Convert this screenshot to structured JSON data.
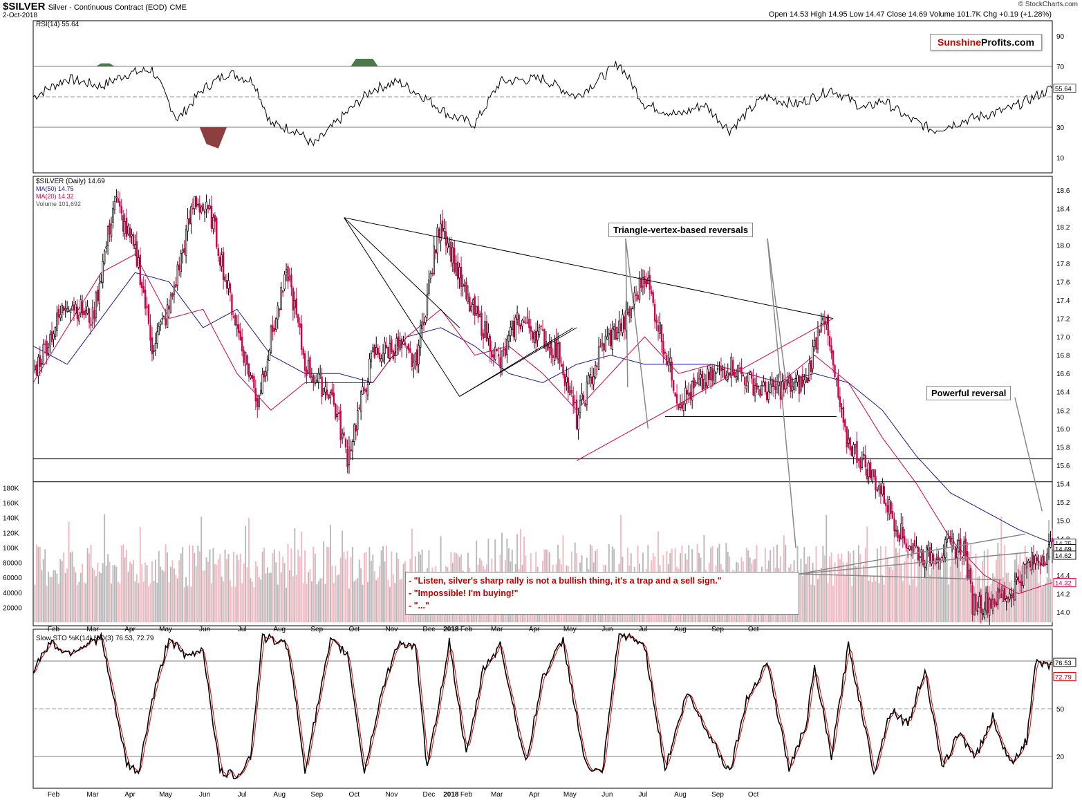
{
  "header": {
    "symbol": "$SILVER",
    "description": "Silver - Continuous Contract (EOD)",
    "exchange": "CME",
    "date": "2-Oct-2018",
    "ohlc": "Open 14.53  High 14.95  Low 14.47  Close 14.69  Volume 101.7K  Chg +0.19 (+1.28%)",
    "copyright": "© StockCharts.com",
    "logo_part1": "Sunshine",
    "logo_part2": "Profits.com"
  },
  "annotations": {
    "triangle": "Triangle-vertex-based reversals",
    "powerful": "Powerful reversal",
    "quote_lines": [
      "- \"Listen, silver's sharp rally is not a bullish thing, it's a trap and a sell sign.\"",
      "- \"Impossible! I'm buying!\"",
      "- \"...\""
    ]
  },
  "colors": {
    "up_candle": "#ffffff",
    "down_candle": "#d4004a",
    "ma50": "#1a1a8c",
    "ma20": "#d4004a",
    "volume_up": "#b9b9b9",
    "volume_down": "#f2b9c3",
    "rsi_line": "#000000",
    "overbought_fill": "#4a7a4a",
    "oversold_fill": "#8c3f3f",
    "sto_k": "#000000",
    "sto_d": "#d40000"
  },
  "chart_data": [
    {
      "type": "line",
      "name": "rsi_panel",
      "legend": "RSI(14) 55.64",
      "ylim": [
        0,
        100
      ],
      "yticks": [
        10,
        30,
        50,
        70,
        90
      ],
      "current_label": "55.64",
      "x_days": [
        0,
        20,
        40,
        55,
        70,
        85,
        100,
        115,
        130,
        140,
        155,
        165,
        185,
        200,
        215,
        230,
        245,
        260,
        275,
        300,
        320,
        345,
        360,
        380,
        395,
        410,
        430,
        450,
        470,
        490,
        500,
        515,
        530,
        550,
        575,
        600
      ],
      "values": [
        50,
        62,
        57,
        65,
        68,
        35,
        55,
        66,
        60,
        32,
        28,
        18,
        40,
        55,
        60,
        50,
        38,
        32,
        60,
        62,
        50,
        72,
        45,
        38,
        45,
        28,
        50,
        45,
        55,
        42,
        48,
        36,
        28,
        35,
        42,
        55.64
      ]
    },
    {
      "type": "line",
      "name": "price_panel",
      "legend": "$SILVER (Daily) 14.69",
      "legend_ma50": "MA(50) 14.75",
      "legend_ma20": "MA(20) 14.32",
      "legend_volume": "Volume 101,692",
      "ylim": [
        13.85,
        18.75
      ],
      "yticks": [
        14.0,
        14.2,
        14.4,
        14.6,
        14.8,
        15.0,
        15.2,
        15.4,
        15.6,
        15.8,
        16.0,
        16.2,
        16.4,
        16.6,
        16.8,
        17.0,
        17.2,
        17.4,
        17.6,
        17.8,
        18.0,
        18.2,
        18.4,
        18.6
      ],
      "right_labels": [
        "14.75",
        "14.69",
        "14.62",
        "14.32"
      ],
      "x_days": [
        0,
        20,
        35,
        48,
        62,
        70,
        80,
        95,
        105,
        120,
        132,
        140,
        150,
        160,
        168,
        175,
        185,
        200,
        215,
        225,
        240,
        255,
        265,
        275,
        285,
        300,
        310,
        320,
        335,
        350,
        360,
        380,
        395,
        410,
        430,
        455,
        465,
        478,
        490,
        500,
        512,
        525,
        540,
        548,
        553,
        560,
        575,
        585,
        600
      ],
      "close": [
        16.6,
        17.4,
        17.2,
        18.5,
        17.8,
        16.9,
        17.3,
        18.5,
        18.3,
        17.1,
        16.3,
        17.0,
        17.7,
        16.7,
        16.5,
        16.4,
        15.7,
        16.8,
        16.9,
        16.7,
        18.3,
        17.4,
        17.1,
        16.7,
        17.2,
        17.0,
        16.8,
        16.1,
        16.9,
        17.2,
        17.7,
        16.3,
        16.5,
        16.7,
        16.4,
        16.5,
        17.3,
        15.9,
        15.6,
        15.3,
        14.8,
        14.6,
        14.7,
        14.7,
        14.1,
        14.1,
        14.2,
        14.5,
        14.69
      ],
      "ma50_x_days": [
        0,
        20,
        40,
        60,
        80,
        100,
        120,
        140,
        160,
        180,
        200,
        220,
        240,
        260,
        280,
        300,
        320,
        340,
        360,
        380,
        400,
        420,
        440,
        460,
        480,
        500,
        520,
        540,
        560,
        580,
        600
      ],
      "ma50": [
        16.9,
        16.7,
        17.2,
        17.7,
        17.6,
        17.1,
        17.3,
        16.8,
        16.6,
        16.6,
        16.5,
        17.0,
        17.1,
        16.9,
        16.6,
        16.5,
        16.7,
        16.8,
        16.7,
        16.7,
        16.7,
        16.6,
        16.5,
        16.6,
        16.5,
        16.2,
        15.7,
        15.3,
        15.1,
        14.9,
        14.75
      ],
      "ma20_x_days": [
        0,
        20,
        40,
        60,
        80,
        100,
        120,
        140,
        160,
        180,
        200,
        220,
        240,
        260,
        280,
        300,
        320,
        340,
        360,
        380,
        400,
        420,
        440,
        460,
        480,
        500,
        520,
        540,
        560,
        580,
        600
      ],
      "ma20": [
        16.5,
        17.1,
        17.7,
        17.9,
        17.2,
        17.3,
        16.6,
        16.2,
        16.5,
        16.5,
        16.5,
        17.0,
        17.3,
        16.8,
        16.9,
        16.6,
        16.2,
        16.6,
        17.0,
        16.6,
        16.7,
        16.6,
        16.5,
        16.8,
        16.5,
        15.9,
        15.4,
        14.8,
        14.4,
        14.2,
        14.32
      ],
      "trendlines_data_units": [
        {
          "from": [
            183,
            18.3
          ],
          "to": [
            471,
            17.2
          ],
          "color": "#000"
        },
        {
          "from": [
            183,
            18.3
          ],
          "to": [
            251,
            17.1
          ],
          "color": "#000"
        },
        {
          "from": [
            251,
            16.35
          ],
          "to": [
            318,
            17.1
          ],
          "color": "#000"
        },
        {
          "from": [
            251,
            16.35
          ],
          "to": [
            251,
            16.35
          ],
          "color": "#000"
        },
        {
          "from": [
            320,
            15.65
          ],
          "to": [
            471,
            17.2
          ],
          "color": "#d4004a"
        },
        {
          "from": [
            372,
            16.13
          ],
          "to": [
            473,
            16.13
          ],
          "color": "#000"
        }
      ],
      "horizontal_levels": [
        15.67,
        15.42
      ]
    },
    {
      "type": "bar",
      "name": "volume_overlay",
      "yticks": [
        "20000",
        "40000",
        "60000",
        "80000",
        "100K",
        "120K",
        "140K",
        "160K",
        "180K"
      ],
      "note": "volume bars overlay bottom of price panel"
    },
    {
      "type": "line",
      "name": "slow_sto_panel",
      "legend": "Slow STO %K(14) %D(3) 76.53, 72.79",
      "ylim": [
        0,
        100
      ],
      "yticks": [
        20,
        50,
        80
      ],
      "current_k": "76.53",
      "current_d": "72.79",
      "x_days": [
        0,
        10,
        20,
        30,
        40,
        55,
        62,
        70,
        80,
        90,
        100,
        110,
        120,
        128,
        135,
        150,
        160,
        175,
        185,
        195,
        205,
        215,
        225,
        232,
        245,
        255,
        265,
        275,
        290,
        300,
        312,
        325,
        335,
        345,
        360,
        372,
        385,
        395,
        410,
        420,
        432,
        445,
        455,
        460,
        470,
        480,
        495,
        505,
        515,
        525,
        535,
        545,
        555,
        565,
        575,
        585,
        590,
        600
      ],
      "k": [
        75,
        92,
        85,
        90,
        95,
        15,
        10,
        55,
        95,
        82,
        88,
        10,
        8,
        20,
        95,
        90,
        12,
        92,
        85,
        10,
        60,
        92,
        88,
        12,
        92,
        20,
        75,
        90,
        15,
        70,
        93,
        15,
        8,
        98,
        90,
        12,
        60,
        40,
        10,
        55,
        80,
        12,
        40,
        75,
        20,
        90,
        10,
        50,
        40,
        75,
        12,
        35,
        20,
        45,
        15,
        30,
        78,
        76.53
      ],
      "x_labels": [
        "Feb",
        "Mar",
        "Apr",
        "May",
        "Jun",
        "Jul",
        "Aug",
        "Sep",
        "Oct",
        "Nov",
        "Dec",
        "2018",
        "Feb",
        "Mar",
        "Apr",
        "May",
        "Jun",
        "Jul",
        "Aug",
        "Sep",
        "Oct"
      ]
    }
  ]
}
